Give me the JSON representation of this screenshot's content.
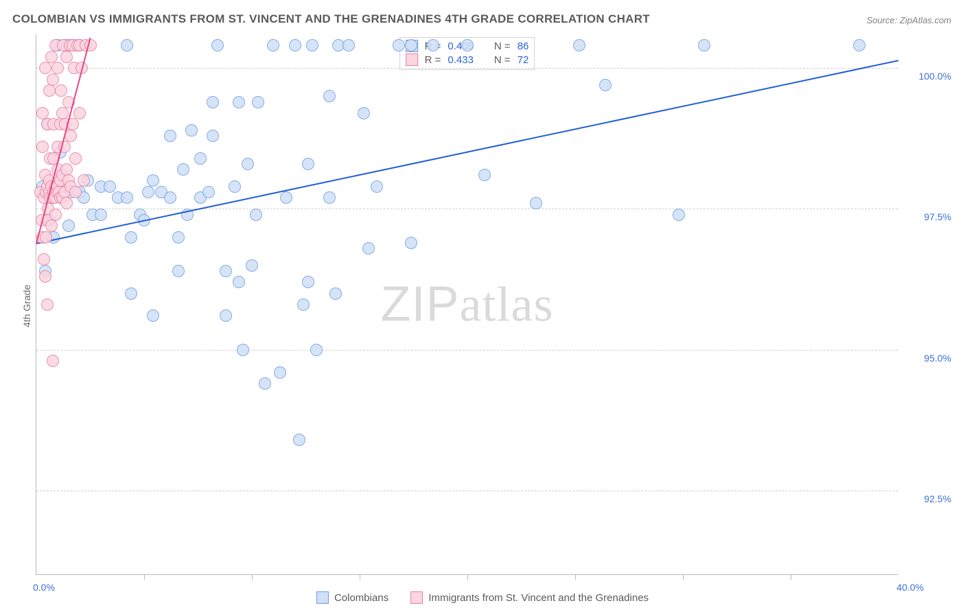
{
  "title": "COLOMBIAN VS IMMIGRANTS FROM ST. VINCENT AND THE GRENADINES 4TH GRADE CORRELATION CHART",
  "source": "Source: ZipAtlas.com",
  "ylabel": "4th Grade",
  "watermark_z": "ZIP",
  "watermark_rest": "atlas",
  "chart": {
    "type": "scatter",
    "background_color": "#ffffff",
    "grid_color": "#cfcfcf",
    "axis_color": "#b9b9b9",
    "xlim": [
      0,
      40
    ],
    "ylim": [
      91.0,
      100.6
    ],
    "x_axis_label_low": "0.0%",
    "x_axis_label_high": "40.0%",
    "y_ticks": [
      92.5,
      95.0,
      97.5,
      100.0
    ],
    "y_tick_labels": [
      "92.5%",
      "95.0%",
      "97.5%",
      "100.0%"
    ],
    "x_minor_ticks": [
      5,
      10,
      15,
      20,
      25,
      30,
      35
    ],
    "marker_radius": 9,
    "series": [
      {
        "name": "Colombians",
        "marker_fill": "#cfe0f7",
        "marker_stroke": "#6f9de0",
        "line_color": "#1f5ed8",
        "line_width": 2,
        "R": "0.405",
        "N": "86",
        "reg_p1": [
          0,
          96.9
        ],
        "reg_p2": [
          40,
          100.15
        ],
        "points": [
          [
            0.3,
            97.9
          ],
          [
            0.8,
            97.7
          ],
          [
            0.5,
            99.0
          ],
          [
            1.0,
            100.4
          ],
          [
            1.4,
            100.4
          ],
          [
            1.7,
            100.4
          ],
          [
            0.6,
            97.3
          ],
          [
            0.8,
            97.0
          ],
          [
            0.4,
            96.4
          ],
          [
            1.2,
            97.8
          ],
          [
            1.6,
            97.8
          ],
          [
            1.1,
            98.5
          ],
          [
            1.5,
            97.2
          ],
          [
            2.0,
            97.8
          ],
          [
            2.2,
            97.7
          ],
          [
            2.4,
            98.0
          ],
          [
            2.0,
            100.4
          ],
          [
            2.6,
            97.4
          ],
          [
            3.0,
            97.9
          ],
          [
            3.0,
            97.4
          ],
          [
            3.4,
            97.9
          ],
          [
            3.8,
            97.7
          ],
          [
            4.2,
            97.7
          ],
          [
            4.4,
            97.0
          ],
          [
            4.8,
            97.4
          ],
          [
            4.2,
            100.4
          ],
          [
            4.4,
            96.0
          ],
          [
            5.0,
            97.3
          ],
          [
            5.2,
            97.8
          ],
          [
            5.4,
            98.0
          ],
          [
            5.4,
            95.6
          ],
          [
            5.8,
            97.8
          ],
          [
            6.2,
            97.7
          ],
          [
            6.2,
            98.8
          ],
          [
            6.6,
            97.0
          ],
          [
            6.6,
            96.4
          ],
          [
            6.8,
            98.2
          ],
          [
            7.2,
            98.9
          ],
          [
            7.0,
            97.4
          ],
          [
            7.6,
            97.7
          ],
          [
            7.6,
            98.4
          ],
          [
            8.0,
            97.8
          ],
          [
            8.2,
            99.4
          ],
          [
            8.2,
            98.8
          ],
          [
            8.4,
            100.4
          ],
          [
            8.8,
            95.6
          ],
          [
            8.8,
            96.4
          ],
          [
            9.2,
            97.9
          ],
          [
            9.4,
            99.4
          ],
          [
            9.4,
            96.2
          ],
          [
            9.6,
            95.0
          ],
          [
            9.8,
            98.3
          ],
          [
            10.0,
            96.5
          ],
          [
            10.2,
            97.4
          ],
          [
            10.3,
            99.4
          ],
          [
            10.6,
            94.4
          ],
          [
            11.0,
            100.4
          ],
          [
            11.3,
            94.6
          ],
          [
            11.6,
            97.7
          ],
          [
            12.0,
            100.4
          ],
          [
            12.2,
            93.4
          ],
          [
            12.4,
            95.8
          ],
          [
            12.6,
            98.3
          ],
          [
            12.6,
            96.2
          ],
          [
            12.8,
            100.4
          ],
          [
            13.0,
            95.0
          ],
          [
            13.6,
            99.5
          ],
          [
            13.6,
            97.7
          ],
          [
            13.9,
            96.0
          ],
          [
            14.0,
            100.4
          ],
          [
            14.5,
            100.4
          ],
          [
            15.2,
            99.2
          ],
          [
            15.4,
            96.8
          ],
          [
            15.8,
            97.9
          ],
          [
            16.8,
            100.4
          ],
          [
            17.4,
            96.9
          ],
          [
            17.4,
            100.4
          ],
          [
            18.4,
            100.4
          ],
          [
            20.0,
            100.4
          ],
          [
            20.8,
            98.1
          ],
          [
            23.2,
            97.6
          ],
          [
            25.2,
            100.4
          ],
          [
            26.4,
            99.7
          ],
          [
            29.8,
            97.4
          ],
          [
            31.0,
            100.4
          ],
          [
            38.2,
            100.4
          ]
        ]
      },
      {
        "name": "Immigrants from St. Vincent and the Grenadines",
        "marker_fill": "#fbd5e0",
        "marker_stroke": "#e87ea0",
        "line_color": "#e64586",
        "line_width": 2,
        "R": "0.433",
        "N": "72",
        "reg_p1": [
          0,
          96.9
        ],
        "reg_p2": [
          2.5,
          100.55
        ],
        "points": [
          [
            0.2,
            97.8
          ],
          [
            0.25,
            97.3
          ],
          [
            0.3,
            98.6
          ],
          [
            0.3,
            99.2
          ],
          [
            0.3,
            97.0
          ],
          [
            0.35,
            96.6
          ],
          [
            0.35,
            97.7
          ],
          [
            0.4,
            98.1
          ],
          [
            0.4,
            96.3
          ],
          [
            0.4,
            100.0
          ],
          [
            0.45,
            97.8
          ],
          [
            0.45,
            97.0
          ],
          [
            0.5,
            97.9
          ],
          [
            0.5,
            99.0
          ],
          [
            0.5,
            95.8
          ],
          [
            0.55,
            97.3
          ],
          [
            0.55,
            97.5
          ],
          [
            0.6,
            97.8
          ],
          [
            0.6,
            98.0
          ],
          [
            0.6,
            99.6
          ],
          [
            0.65,
            97.7
          ],
          [
            0.65,
            98.4
          ],
          [
            0.7,
            97.9
          ],
          [
            0.7,
            97.2
          ],
          [
            0.7,
            100.2
          ],
          [
            0.75,
            97.7
          ],
          [
            0.75,
            99.8
          ],
          [
            0.76,
            94.8
          ],
          [
            0.8,
            97.8
          ],
          [
            0.8,
            98.4
          ],
          [
            0.8,
            99.0
          ],
          [
            0.85,
            97.7
          ],
          [
            0.9,
            97.9
          ],
          [
            0.9,
            97.4
          ],
          [
            0.9,
            100.4
          ],
          [
            0.95,
            97.8
          ],
          [
            1.0,
            97.9
          ],
          [
            1.0,
            98.2
          ],
          [
            1.0,
            98.6
          ],
          [
            1.0,
            100.0
          ],
          [
            1.05,
            97.8
          ],
          [
            1.1,
            97.7
          ],
          [
            1.1,
            98.0
          ],
          [
            1.1,
            99.0
          ],
          [
            1.15,
            99.6
          ],
          [
            1.2,
            97.7
          ],
          [
            1.2,
            98.1
          ],
          [
            1.2,
            99.2
          ],
          [
            1.25,
            100.4
          ],
          [
            1.3,
            97.8
          ],
          [
            1.3,
            98.6
          ],
          [
            1.35,
            99.0
          ],
          [
            1.4,
            98.2
          ],
          [
            1.4,
            97.6
          ],
          [
            1.4,
            100.2
          ],
          [
            1.5,
            99.4
          ],
          [
            1.5,
            98.0
          ],
          [
            1.55,
            100.4
          ],
          [
            1.6,
            97.9
          ],
          [
            1.6,
            98.8
          ],
          [
            1.7,
            100.4
          ],
          [
            1.7,
            99.0
          ],
          [
            1.75,
            100.0
          ],
          [
            1.8,
            98.4
          ],
          [
            1.8,
            97.8
          ],
          [
            1.9,
            100.4
          ],
          [
            2.0,
            99.2
          ],
          [
            2.0,
            100.4
          ],
          [
            2.1,
            100.0
          ],
          [
            2.2,
            98.0
          ],
          [
            2.3,
            100.4
          ],
          [
            2.5,
            100.4
          ]
        ]
      }
    ]
  },
  "legend": {
    "series1_label": "Colombians",
    "series2_label": "Immigrants from St. Vincent and the Grenadines"
  },
  "stats_labels": {
    "R": "R =",
    "N": "N ="
  }
}
